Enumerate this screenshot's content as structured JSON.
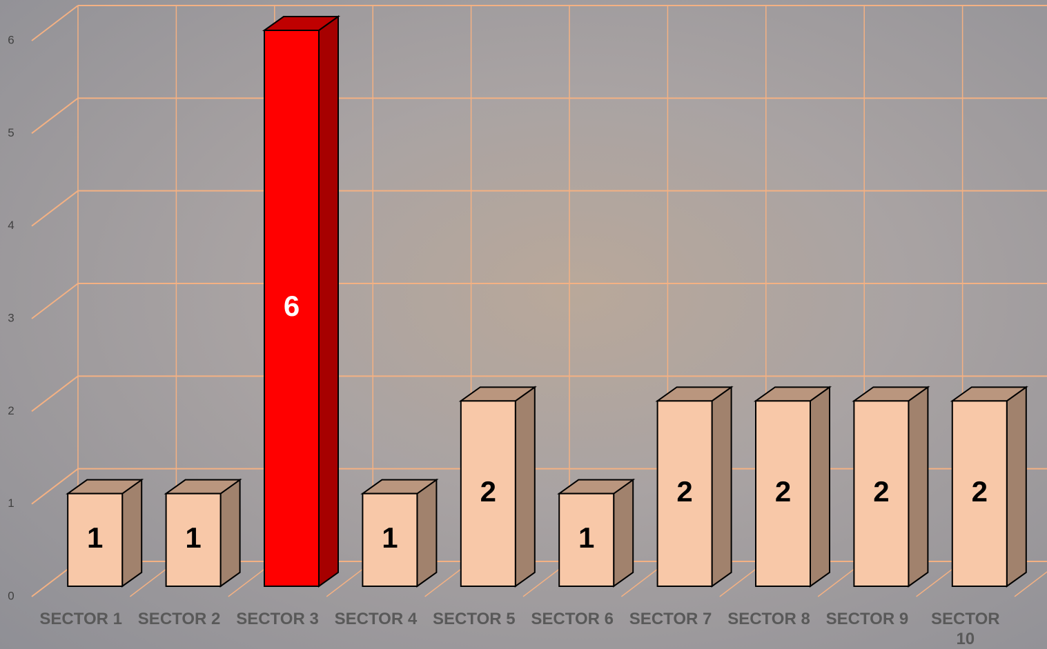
{
  "chart_data": {
    "type": "bar3d",
    "categories": [
      "SECTOR 1",
      "SECTOR 2",
      "SECTOR 3",
      "SECTOR 4",
      "SECTOR 5",
      "SECTOR 6",
      "SECTOR 7",
      "SECTOR 8",
      "SECTOR 9",
      "SECTOR 10"
    ],
    "values": [
      1,
      1,
      6,
      1,
      2,
      1,
      2,
      2,
      2,
      2
    ],
    "colors": [
      "#f8c8a8",
      "#f8c8a8",
      "#ff0000",
      "#f8c8a8",
      "#f8c8a8",
      "#f8c8a8",
      "#f8c8a8",
      "#f8c8a8",
      "#f8c8a8",
      "#f8c8a8"
    ],
    "label_colors": [
      "#000000",
      "#000000",
      "#ffffff",
      "#000000",
      "#000000",
      "#000000",
      "#000000",
      "#000000",
      "#000000",
      "#000000"
    ],
    "grid_color": "#f4b183",
    "ylim": [
      0,
      6
    ],
    "yticks": [
      0,
      1,
      2,
      3,
      4,
      5,
      6
    ],
    "grid": true
  }
}
